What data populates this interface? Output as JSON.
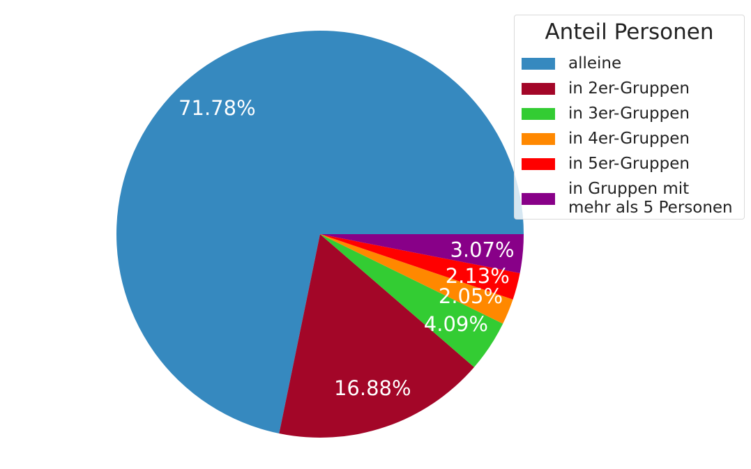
{
  "chart_data": {
    "type": "pie",
    "legend_title": "Anteil Personen",
    "legend_position": "top-right",
    "slices": [
      {
        "name": "alleine",
        "value": 71.78,
        "label": "71.78%",
        "color": "#3689bf"
      },
      {
        "name": "in 2er-Gruppen",
        "value": 16.88,
        "label": "16.88%",
        "color": "#a30628"
      },
      {
        "name": "in 3er-Gruppen",
        "value": 4.09,
        "label": "4.09%",
        "color": "#33cc33"
      },
      {
        "name": "in 4er-Gruppen",
        "value": 2.05,
        "label": "2.05%",
        "color": "#ff8800"
      },
      {
        "name": "in 5er-Gruppen",
        "value": 2.13,
        "label": "2.13%",
        "color": "#ff0000"
      },
      {
        "name": "in Gruppen mit\nmehr als 5 Personen",
        "value": 3.07,
        "label": "3.07%",
        "color": "#880088"
      }
    ]
  }
}
